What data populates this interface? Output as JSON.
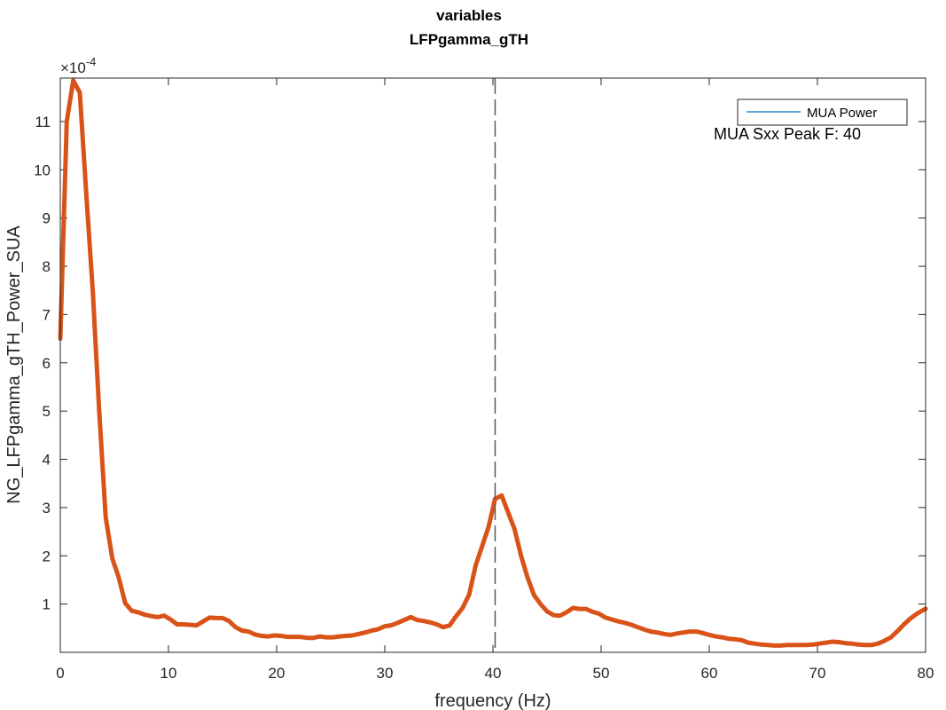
{
  "chart_data": {
    "type": "line",
    "title": "variables",
    "subtitle": "LFPgamma_gTH",
    "xlabel": "frequency (Hz)",
    "ylabel": "NG_LFPgamma_gTH_Power_SUA",
    "exponent_label": "×10",
    "exponent_power": "-4",
    "xlim": [
      0,
      80
    ],
    "ylim": [
      0,
      11.9
    ],
    "xticks": [
      0,
      10,
      20,
      30,
      40,
      50,
      60,
      70,
      80
    ],
    "yticks": [
      1,
      2,
      3,
      4,
      5,
      6,
      7,
      8,
      9,
      10,
      11
    ],
    "grid": false,
    "legend": {
      "location": "top-right",
      "entries": [
        "MUA Power"
      ]
    },
    "annotation": "MUA Sxx Peak F: 40",
    "vline_x": 40.2,
    "colors": {
      "series": "#d95319",
      "legend_line": "#0072bd",
      "vline": "#595959"
    },
    "series": [
      {
        "name": "MUA Power",
        "x": [
          0,
          0.6,
          1.2,
          1.8,
          2.4,
          3.0,
          3.6,
          4.2,
          4.8,
          5.4,
          6.0,
          6.6,
          7.2,
          7.8,
          8.4,
          9.0,
          9.6,
          10.2,
          10.8,
          11.4,
          12.0,
          12.6,
          13.2,
          13.8,
          14.4,
          15.0,
          15.6,
          16.2,
          16.8,
          17.4,
          18.0,
          18.6,
          19.2,
          19.8,
          20.4,
          21.0,
          21.6,
          22.2,
          22.8,
          23.4,
          24.0,
          24.6,
          25.2,
          25.8,
          26.4,
          27.0,
          27.6,
          28.2,
          28.8,
          29.4,
          30.0,
          30.6,
          31.2,
          31.8,
          32.4,
          33.0,
          33.6,
          34.2,
          34.8,
          35.4,
          36.0,
          36.6,
          37.2,
          37.8,
          38.4,
          39.0,
          39.6,
          40.2,
          40.8,
          41.4,
          42.0,
          42.6,
          43.2,
          43.8,
          44.4,
          45.0,
          45.6,
          46.2,
          46.8,
          47.4,
          48.0,
          48.6,
          49.2,
          49.8,
          50.4,
          51.0,
          51.6,
          52.2,
          52.8,
          53.4,
          54.0,
          54.6,
          55.2,
          55.8,
          56.4,
          57.0,
          57.6,
          58.2,
          58.8,
          59.4,
          60.0,
          60.6,
          61.2,
          61.8,
          62.4,
          63.0,
          63.6,
          64.2,
          64.8,
          65.4,
          66.0,
          66.6,
          67.2,
          67.8,
          68.4,
          69.0,
          69.6,
          70.2,
          70.8,
          71.4,
          72.0,
          72.6,
          73.2,
          73.8,
          74.4,
          75.0,
          75.6,
          76.2,
          76.8,
          77.4,
          78.0,
          78.6,
          79.2,
          79.8,
          80.0
        ],
        "values": [
          6.5,
          11.0,
          11.85,
          11.6,
          9.5,
          7.5,
          5.0,
          2.8,
          1.95,
          1.55,
          1.02,
          0.86,
          0.83,
          0.78,
          0.75,
          0.73,
          0.76,
          0.68,
          0.58,
          0.58,
          0.57,
          0.56,
          0.64,
          0.72,
          0.71,
          0.71,
          0.65,
          0.52,
          0.45,
          0.43,
          0.37,
          0.34,
          0.33,
          0.35,
          0.34,
          0.32,
          0.32,
          0.32,
          0.3,
          0.3,
          0.33,
          0.31,
          0.31,
          0.33,
          0.34,
          0.35,
          0.38,
          0.41,
          0.45,
          0.48,
          0.54,
          0.56,
          0.61,
          0.67,
          0.73,
          0.67,
          0.65,
          0.62,
          0.58,
          0.52,
          0.56,
          0.75,
          0.92,
          1.2,
          1.8,
          2.2,
          2.6,
          3.18,
          3.25,
          2.9,
          2.55,
          2.0,
          1.55,
          1.18,
          1.0,
          0.85,
          0.77,
          0.76,
          0.83,
          0.92,
          0.9,
          0.9,
          0.84,
          0.8,
          0.72,
          0.68,
          0.64,
          0.61,
          0.57,
          0.52,
          0.47,
          0.43,
          0.41,
          0.38,
          0.36,
          0.39,
          0.41,
          0.43,
          0.43,
          0.4,
          0.36,
          0.33,
          0.31,
          0.28,
          0.27,
          0.25,
          0.2,
          0.18,
          0.16,
          0.15,
          0.14,
          0.14,
          0.15,
          0.15,
          0.15,
          0.15,
          0.16,
          0.18,
          0.2,
          0.22,
          0.21,
          0.19,
          0.18,
          0.16,
          0.15,
          0.15,
          0.18,
          0.24,
          0.31,
          0.44,
          0.58,
          0.7,
          0.8,
          0.88,
          0.9
        ]
      }
    ]
  }
}
